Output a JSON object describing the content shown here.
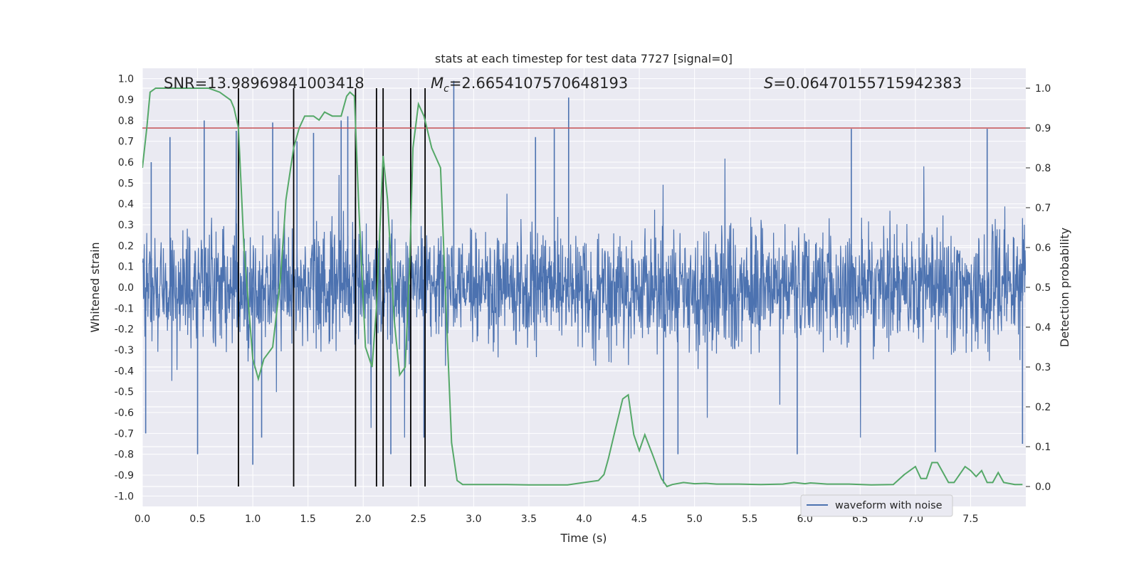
{
  "chart_data": {
    "type": "line",
    "title": "stats at each timestep for test data 7727 [signal=0]",
    "xlabel": "Time (s)",
    "ylabel_left": "Whitened strain",
    "ylabel_right": "Detection probability",
    "xlim": [
      0.0,
      8.0
    ],
    "ylim_left": [
      -1.05,
      1.05
    ],
    "ylim_right": [
      -0.05,
      1.05
    ],
    "x_ticks": [
      "0.0",
      "0.5",
      "1.0",
      "1.5",
      "2.0",
      "2.5",
      "3.0",
      "3.5",
      "4.0",
      "4.5",
      "5.0",
      "5.5",
      "6.0",
      "6.5",
      "7.0",
      "7.5"
    ],
    "y_left_ticks": [
      "-1.0",
      "-0.9",
      "-0.8",
      "-0.7",
      "-0.6",
      "-0.5",
      "-0.4",
      "-0.3",
      "-0.2",
      "-0.1",
      "0.0",
      "0.1",
      "0.2",
      "0.3",
      "0.4",
      "0.5",
      "0.6",
      "0.7",
      "0.8",
      "0.9",
      "1.0"
    ],
    "y_right_ticks": [
      "0.0",
      "0.1",
      "0.2",
      "0.3",
      "0.4",
      "0.5",
      "0.6",
      "0.7",
      "0.8",
      "0.9",
      "1.0"
    ],
    "annotations": {
      "snr": "SNR=13.98969841003418",
      "mc_symbol": "M",
      "mc_sub": "c",
      "mc_value": "=2.6654107570648193",
      "s_symbol": "S",
      "s_value": "=0.06470155715942383"
    },
    "threshold": {
      "value": 0.9,
      "axis": "right",
      "color": "#c44e52"
    },
    "vertical_markers": [
      0.87,
      1.37,
      1.93,
      2.12,
      2.18,
      2.43,
      2.56
    ],
    "series": [
      {
        "name": "waveform with noise",
        "axis": "left",
        "color": "#4c72b0",
        "description": "dense noise, mostly within about ±0.45 with spikes",
        "spikes": [
          {
            "t": 0.03,
            "v": -0.7
          },
          {
            "t": 0.08,
            "v": 0.6
          },
          {
            "t": 0.25,
            "v": 0.72
          },
          {
            "t": 0.5,
            "v": -0.8
          },
          {
            "t": 0.56,
            "v": 0.8
          },
          {
            "t": 0.85,
            "v": 0.75
          },
          {
            "t": 1.0,
            "v": -0.85
          },
          {
            "t": 1.08,
            "v": -0.72
          },
          {
            "t": 1.18,
            "v": 0.79
          },
          {
            "t": 1.4,
            "v": 0.7
          },
          {
            "t": 1.55,
            "v": 0.74
          },
          {
            "t": 1.8,
            "v": 0.8
          },
          {
            "t": 1.86,
            "v": 0.82
          },
          {
            "t": 2.25,
            "v": -0.8
          },
          {
            "t": 2.55,
            "v": -0.72
          },
          {
            "t": 2.82,
            "v": 0.99
          },
          {
            "t": 3.56,
            "v": 0.72
          },
          {
            "t": 3.73,
            "v": 0.76
          },
          {
            "t": 3.86,
            "v": 0.91
          },
          {
            "t": 4.72,
            "v": -0.94
          },
          {
            "t": 4.85,
            "v": -0.8
          },
          {
            "t": 5.93,
            "v": -0.8
          },
          {
            "t": 6.42,
            "v": 0.76
          },
          {
            "t": 7.18,
            "v": -0.79
          },
          {
            "t": 7.65,
            "v": 0.76
          },
          {
            "t": 7.97,
            "v": -0.75
          }
        ]
      },
      {
        "name": "detection probability",
        "axis": "right",
        "color": "#55a868",
        "x": [
          0.0,
          0.04,
          0.07,
          0.12,
          0.2,
          0.35,
          0.5,
          0.6,
          0.7,
          0.8,
          0.83,
          0.87,
          0.92,
          1.0,
          1.05,
          1.1,
          1.18,
          1.25,
          1.3,
          1.37,
          1.42,
          1.47,
          1.55,
          1.6,
          1.65,
          1.72,
          1.8,
          1.85,
          1.88,
          1.92,
          1.96,
          2.02,
          2.08,
          2.12,
          2.18,
          2.22,
          2.28,
          2.33,
          2.38,
          2.42,
          2.45,
          2.5,
          2.55,
          2.62,
          2.7,
          2.75,
          2.8,
          2.85,
          2.9,
          2.95,
          3.1,
          3.3,
          3.5,
          3.7,
          3.85,
          4.0,
          4.13,
          4.18,
          4.22,
          4.28,
          4.35,
          4.4,
          4.45,
          4.5,
          4.55,
          4.62,
          4.7,
          4.75,
          4.8,
          4.9,
          5.0,
          5.1,
          5.2,
          5.4,
          5.6,
          5.8,
          5.9,
          6.0,
          6.05,
          6.1,
          6.2,
          6.4,
          6.6,
          6.8,
          6.9,
          6.95,
          7.0,
          7.05,
          7.1,
          7.15,
          7.2,
          7.25,
          7.3,
          7.35,
          7.45,
          7.5,
          7.55,
          7.6,
          7.65,
          7.7,
          7.75,
          7.8,
          7.9,
          7.97
        ],
        "values": [
          0.8,
          0.9,
          0.99,
          1.0,
          1.0,
          1.0,
          1.0,
          1.0,
          0.99,
          0.97,
          0.95,
          0.9,
          0.6,
          0.32,
          0.27,
          0.32,
          0.35,
          0.52,
          0.72,
          0.85,
          0.9,
          0.93,
          0.93,
          0.92,
          0.94,
          0.93,
          0.93,
          0.98,
          0.99,
          0.98,
          0.7,
          0.35,
          0.3,
          0.45,
          0.83,
          0.72,
          0.42,
          0.28,
          0.3,
          0.55,
          0.85,
          0.96,
          0.93,
          0.85,
          0.8,
          0.45,
          0.11,
          0.015,
          0.005,
          0.005,
          0.005,
          0.005,
          0.004,
          0.004,
          0.004,
          0.01,
          0.015,
          0.03,
          0.07,
          0.14,
          0.22,
          0.23,
          0.13,
          0.09,
          0.13,
          0.08,
          0.02,
          0.0,
          0.005,
          0.01,
          0.007,
          0.008,
          0.006,
          0.006,
          0.005,
          0.006,
          0.01,
          0.007,
          0.009,
          0.008,
          0.006,
          0.006,
          0.004,
          0.005,
          0.03,
          0.04,
          0.05,
          0.02,
          0.02,
          0.06,
          0.06,
          0.035,
          0.01,
          0.01,
          0.05,
          0.04,
          0.025,
          0.04,
          0.01,
          0.01,
          0.035,
          0.01,
          0.005,
          0.005
        ]
      }
    ],
    "legend": {
      "label": "waveform with noise",
      "placement": "lower-right"
    }
  }
}
